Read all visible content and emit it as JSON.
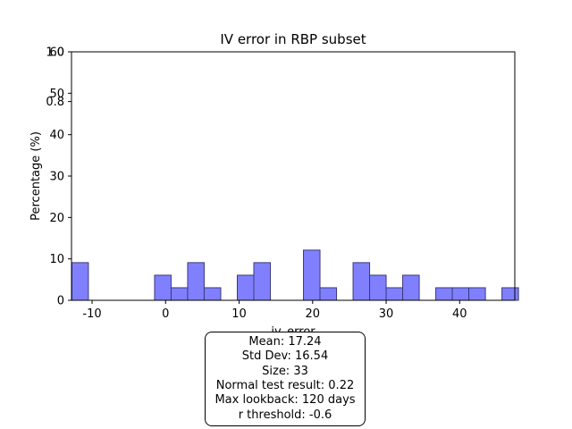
{
  "chart_data": {
    "type": "bar",
    "title": "IV error in RBP subset",
    "xlabel": "iv_error",
    "ylabel": "Percentage (%)",
    "xlim": [
      -12.8,
      47.5
    ],
    "ylim": [
      0,
      60
    ],
    "x_ticks": [
      -10,
      0,
      10,
      20,
      30,
      40
    ],
    "y_ticks": [
      0,
      10,
      20,
      30,
      40,
      50,
      60
    ],
    "stray_ticks": [
      {
        "label": "1.0",
        "value": 60
      },
      {
        "label": "0.8",
        "value": 48
      }
    ],
    "bin_width": 2.25,
    "bins": [
      {
        "x0": -12.75,
        "value": 9.09
      },
      {
        "x0": -1.5,
        "value": 6.06
      },
      {
        "x0": 0.75,
        "value": 3.03
      },
      {
        "x0": 3.0,
        "value": 9.09
      },
      {
        "x0": 5.25,
        "value": 3.03
      },
      {
        "x0": 9.75,
        "value": 6.06
      },
      {
        "x0": 12.0,
        "value": 9.09
      },
      {
        "x0": 18.75,
        "value": 12.12
      },
      {
        "x0": 21.0,
        "value": 3.03
      },
      {
        "x0": 25.5,
        "value": 9.09
      },
      {
        "x0": 27.75,
        "value": 6.06
      },
      {
        "x0": 30.0,
        "value": 3.03
      },
      {
        "x0": 32.25,
        "value": 6.06
      },
      {
        "x0": 36.75,
        "value": 3.03
      },
      {
        "x0": 39.0,
        "value": 3.03
      },
      {
        "x0": 41.25,
        "value": 3.03
      },
      {
        "x0": 45.75,
        "value": 3.03
      }
    ],
    "bar_color": "#8080ff",
    "bar_edge_color": "#3a3a7a",
    "grid": false,
    "annotation": {
      "lines": [
        "Mean: 17.24",
        "Std Dev: 16.54",
        "Size: 33",
        "Normal test result: 0.22",
        "Max lookback: 120 days",
        "r threshold: -0.6"
      ]
    }
  }
}
